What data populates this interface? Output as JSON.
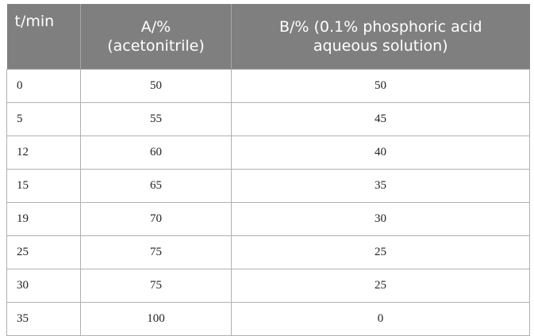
{
  "table": {
    "header": [
      [
        "t/min"
      ],
      [
        "A/%",
        "(acetonitrile)"
      ],
      [
        "B/% (0.1% phosphoric acid",
        "aqueous solution)"
      ]
    ],
    "rows": [
      [
        0,
        50,
        50
      ],
      [
        5,
        55,
        45
      ],
      [
        12,
        60,
        40
      ],
      [
        15,
        65,
        35
      ],
      [
        19,
        70,
        30
      ],
      [
        25,
        75,
        25
      ],
      [
        30,
        75,
        25
      ],
      [
        35,
        100,
        0
      ]
    ]
  }
}
